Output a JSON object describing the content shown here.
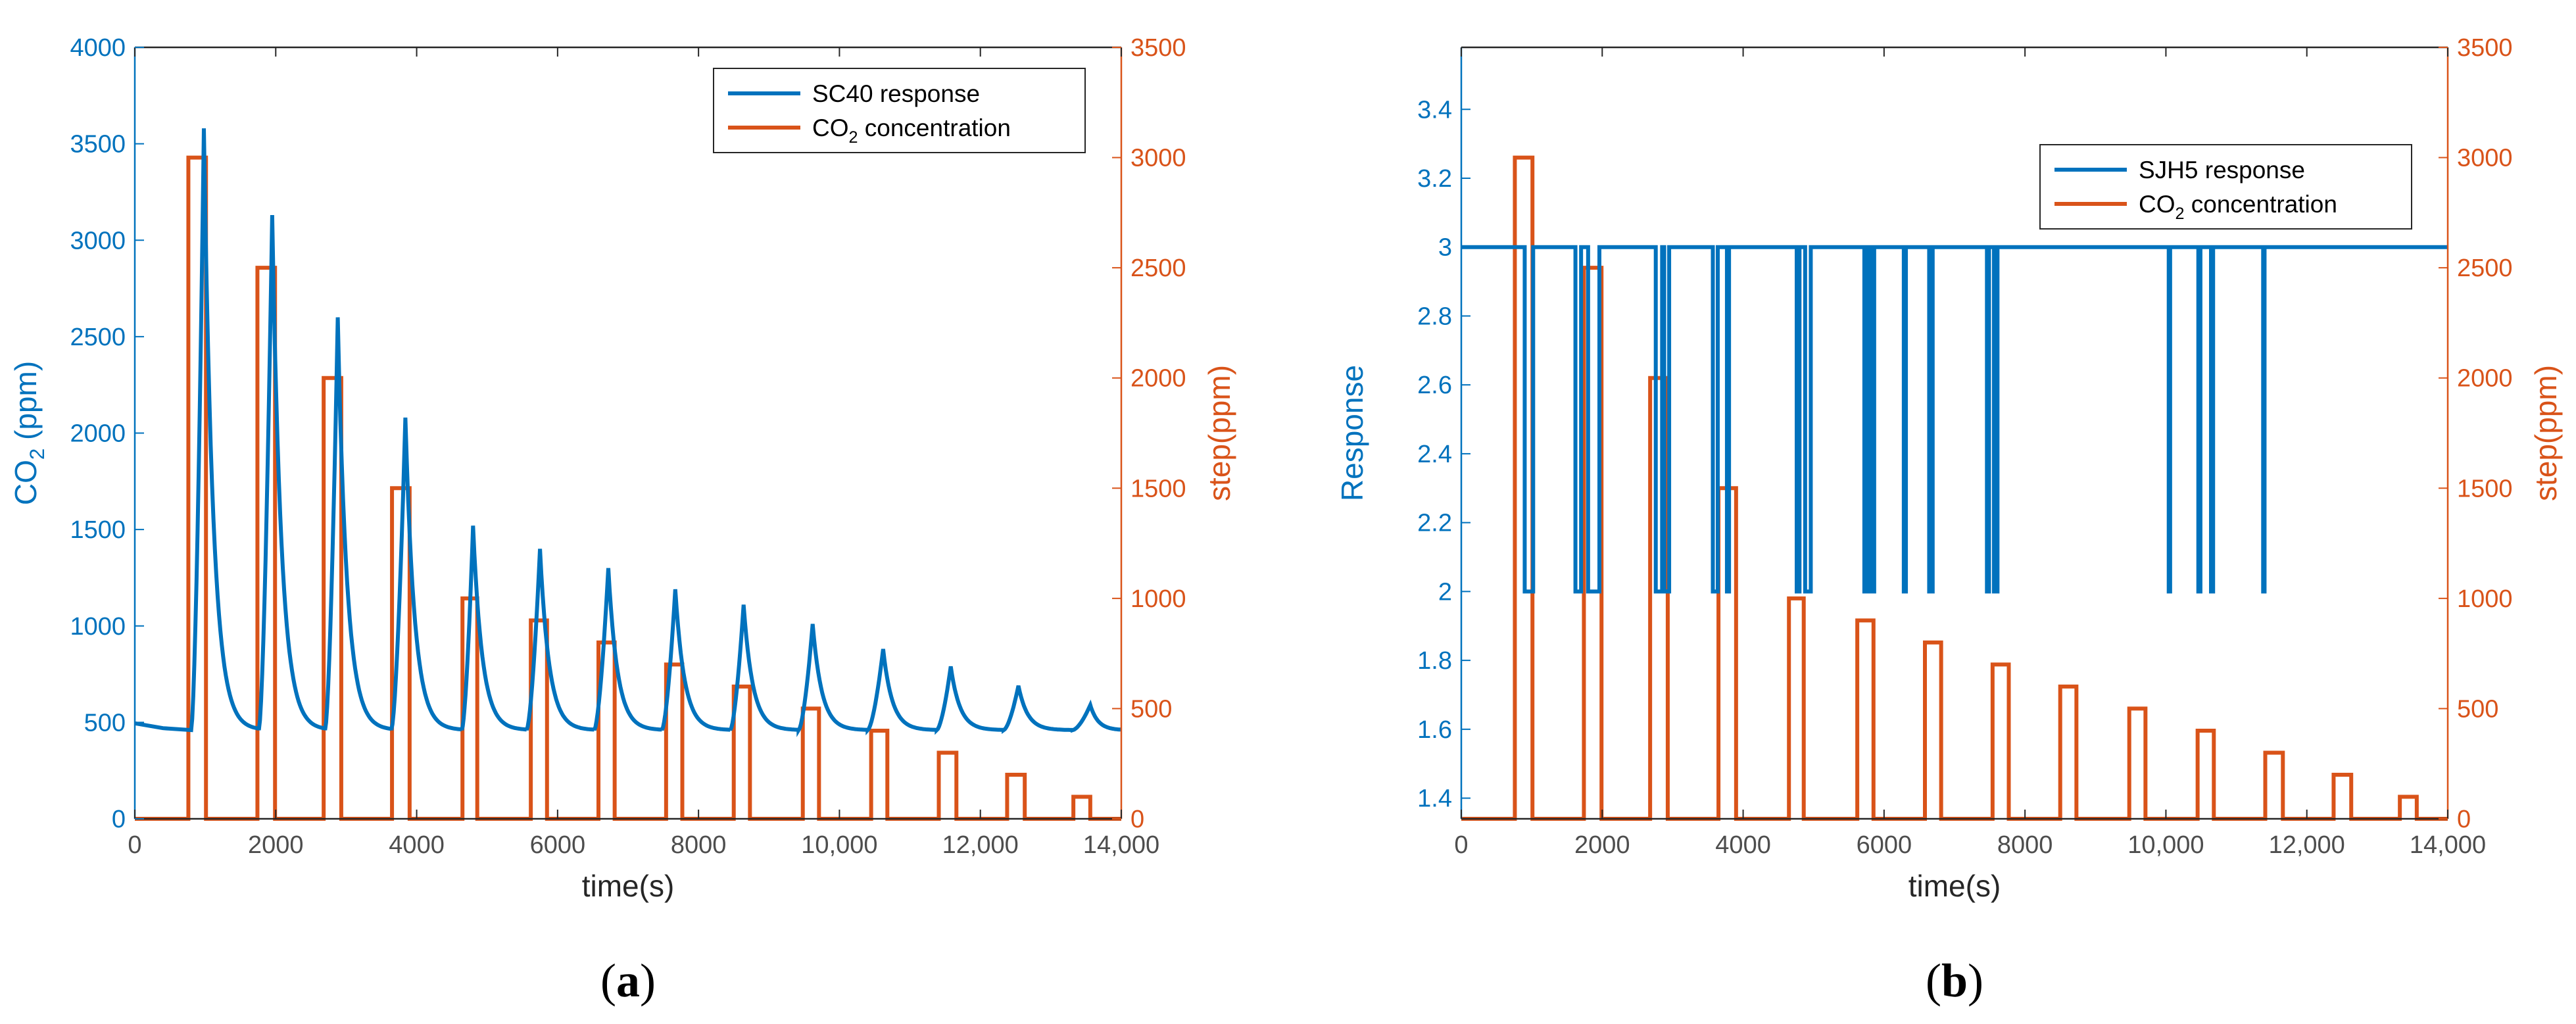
{
  "colors": {
    "blue": "#0072BD",
    "orange": "#D95319",
    "axis": "#262626",
    "tick": "#4d4d4d"
  },
  "chart_data": [
    {
      "id": "a",
      "type": "line",
      "panel_label": "a",
      "xlabel": "time(s)",
      "ylabel_left": "CO",
      "ylabel_left_sub": "2",
      "ylabel_left_tail": " (ppm)",
      "ylabel_right": "step(ppm)",
      "xlim": [
        0,
        14000
      ],
      "ylim_left": [
        0,
        4000
      ],
      "ylim_right": [
        0,
        3500
      ],
      "xticks": [
        0,
        2000,
        4000,
        6000,
        8000,
        10000,
        12000,
        14000
      ],
      "xtick_labels": [
        "0",
        "2000",
        "4000",
        "6000",
        "8000",
        "10,000",
        "12,000",
        "14,000"
      ],
      "yticks_left": [
        0,
        500,
        1000,
        1500,
        2000,
        2500,
        3000,
        3500,
        4000
      ],
      "yticks_left_labels": [
        "0",
        "500",
        "1000",
        "1500",
        "2000",
        "2500",
        "3000",
        "3500",
        "4000"
      ],
      "yticks_right": [
        0,
        500,
        1000,
        1500,
        2000,
        2500,
        3000,
        3500
      ],
      "yticks_right_labels": [
        "0",
        "500",
        "1000",
        "1500",
        "2000",
        "2500",
        "3000",
        "3500"
      ],
      "legend": {
        "position": "top-right",
        "entries": [
          {
            "series": "response",
            "text": "SC40 response"
          },
          {
            "series": "step",
            "text": "CO",
            "sub": "2",
            "tail": " concentration"
          }
        ]
      },
      "series": {
        "response": {
          "name": "SC40 response",
          "axis": "left",
          "kind": "decay_peaks",
          "baseline": 460,
          "start": [
            0,
            495
          ],
          "peaks": [
            {
              "start": 800,
              "peak_t": 980,
              "peak": 3580
            },
            {
              "start": 1760,
              "peak_t": 1950,
              "peak": 3130
            },
            {
              "start": 2700,
              "peak_t": 2880,
              "peak": 2600
            },
            {
              "start": 3640,
              "peak_t": 3840,
              "peak": 2080
            },
            {
              "start": 4640,
              "peak_t": 4800,
              "peak": 1520
            },
            {
              "start": 5560,
              "peak_t": 5750,
              "peak": 1400
            },
            {
              "start": 6520,
              "peak_t": 6720,
              "peak": 1300
            },
            {
              "start": 7480,
              "peak_t": 7670,
              "peak": 1190
            },
            {
              "start": 8450,
              "peak_t": 8640,
              "peak": 1110
            },
            {
              "start": 9420,
              "peak_t": 9620,
              "peak": 1010
            },
            {
              "start": 10400,
              "peak_t": 10620,
              "peak": 880
            },
            {
              "start": 11380,
              "peak_t": 11580,
              "peak": 790
            },
            {
              "start": 12330,
              "peak_t": 12540,
              "peak": 690
            },
            {
              "start": 13310,
              "peak_t": 13560,
              "peak": 590
            }
          ]
        },
        "step": {
          "name": "CO2 concentration",
          "axis": "right",
          "kind": "pulses",
          "pulses": [
            [
              760,
              1010,
              3000
            ],
            [
              1740,
              1990,
              2500
            ],
            [
              2680,
              2930,
              2000
            ],
            [
              3650,
              3900,
              1500
            ],
            [
              4650,
              4860,
              1000
            ],
            [
              5620,
              5850,
              900
            ],
            [
              6580,
              6810,
              800
            ],
            [
              7540,
              7770,
              700
            ],
            [
              8500,
              8730,
              600
            ],
            [
              9480,
              9710,
              500
            ],
            [
              10450,
              10680,
              400
            ],
            [
              11410,
              11660,
              300
            ],
            [
              12380,
              12630,
              200
            ],
            [
              13320,
              13560,
              100
            ]
          ]
        }
      }
    },
    {
      "id": "b",
      "type": "line",
      "panel_label": "b",
      "xlabel": "time(s)",
      "ylabel_left": "Response",
      "ylabel_right": "step(ppm)",
      "xlim": [
        0,
        14000
      ],
      "ylim_left": [
        1.34,
        3.58
      ],
      "ylim_right": [
        0,
        3500
      ],
      "xticks": [
        0,
        2000,
        4000,
        6000,
        8000,
        10000,
        12000,
        14000
      ],
      "xtick_labels": [
        "0",
        "2000",
        "4000",
        "6000",
        "8000",
        "10,000",
        "12,000",
        "14,000"
      ],
      "yticks_left": [
        1.4,
        1.6,
        1.8,
        2.0,
        2.2,
        2.4,
        2.6,
        2.8,
        3.0,
        3.2,
        3.4
      ],
      "yticks_left_labels": [
        "1.4",
        "1.6",
        "1.8",
        "2",
        "2.2",
        "2.4",
        "2.6",
        "2.8",
        "3",
        "3.2",
        "3.4"
      ],
      "yticks_right": [
        0,
        500,
        1000,
        1500,
        2000,
        2500,
        3000,
        3500
      ],
      "yticks_right_labels": [
        "0",
        "500",
        "1000",
        "1500",
        "2000",
        "2500",
        "3000",
        "3500"
      ],
      "legend": {
        "position": "top-right",
        "entries": [
          {
            "series": "response",
            "text": "SJH5 response"
          },
          {
            "series": "step",
            "text": "CO",
            "sub": "2",
            "tail": " concentration"
          }
        ]
      },
      "series": {
        "response": {
          "name": "SJH5 response",
          "axis": "left",
          "kind": "digital",
          "high": 3,
          "low": 2,
          "x_end": 14000,
          "dips": [
            [
              900,
              1020
            ],
            [
              1620,
              1700
            ],
            [
              1800,
              1960
            ],
            [
              2760,
              2850
            ],
            [
              2880,
              2950
            ],
            [
              3570,
              3640
            ],
            [
              3770,
              3800
            ],
            [
              4760,
              4800
            ],
            [
              4880,
              4960
            ],
            [
              5720,
              5760
            ],
            [
              5780,
              5810
            ],
            [
              5830,
              5860
            ],
            [
              6280,
              6310
            ],
            [
              6640,
              6690
            ],
            [
              7460,
              7490
            ],
            [
              7560,
              7610
            ],
            [
              10040,
              10060
            ],
            [
              10460,
              10490
            ],
            [
              10640,
              10670
            ],
            [
              11380,
              11400
            ]
          ]
        },
        "step": {
          "name": "CO2 concentration",
          "axis": "right",
          "kind": "pulses",
          "pulses": [
            [
              760,
              1010,
              3000
            ],
            [
              1740,
              1990,
              2500
            ],
            [
              2680,
              2930,
              2000
            ],
            [
              3650,
              3900,
              1500
            ],
            [
              4650,
              4860,
              1000
            ],
            [
              5620,
              5850,
              900
            ],
            [
              6580,
              6810,
              800
            ],
            [
              7540,
              7770,
              700
            ],
            [
              8500,
              8730,
              600
            ],
            [
              9480,
              9710,
              500
            ],
            [
              10450,
              10680,
              400
            ],
            [
              11410,
              11660,
              300
            ],
            [
              12380,
              12630,
              200
            ],
            [
              13320,
              13560,
              100
            ]
          ]
        }
      }
    }
  ]
}
